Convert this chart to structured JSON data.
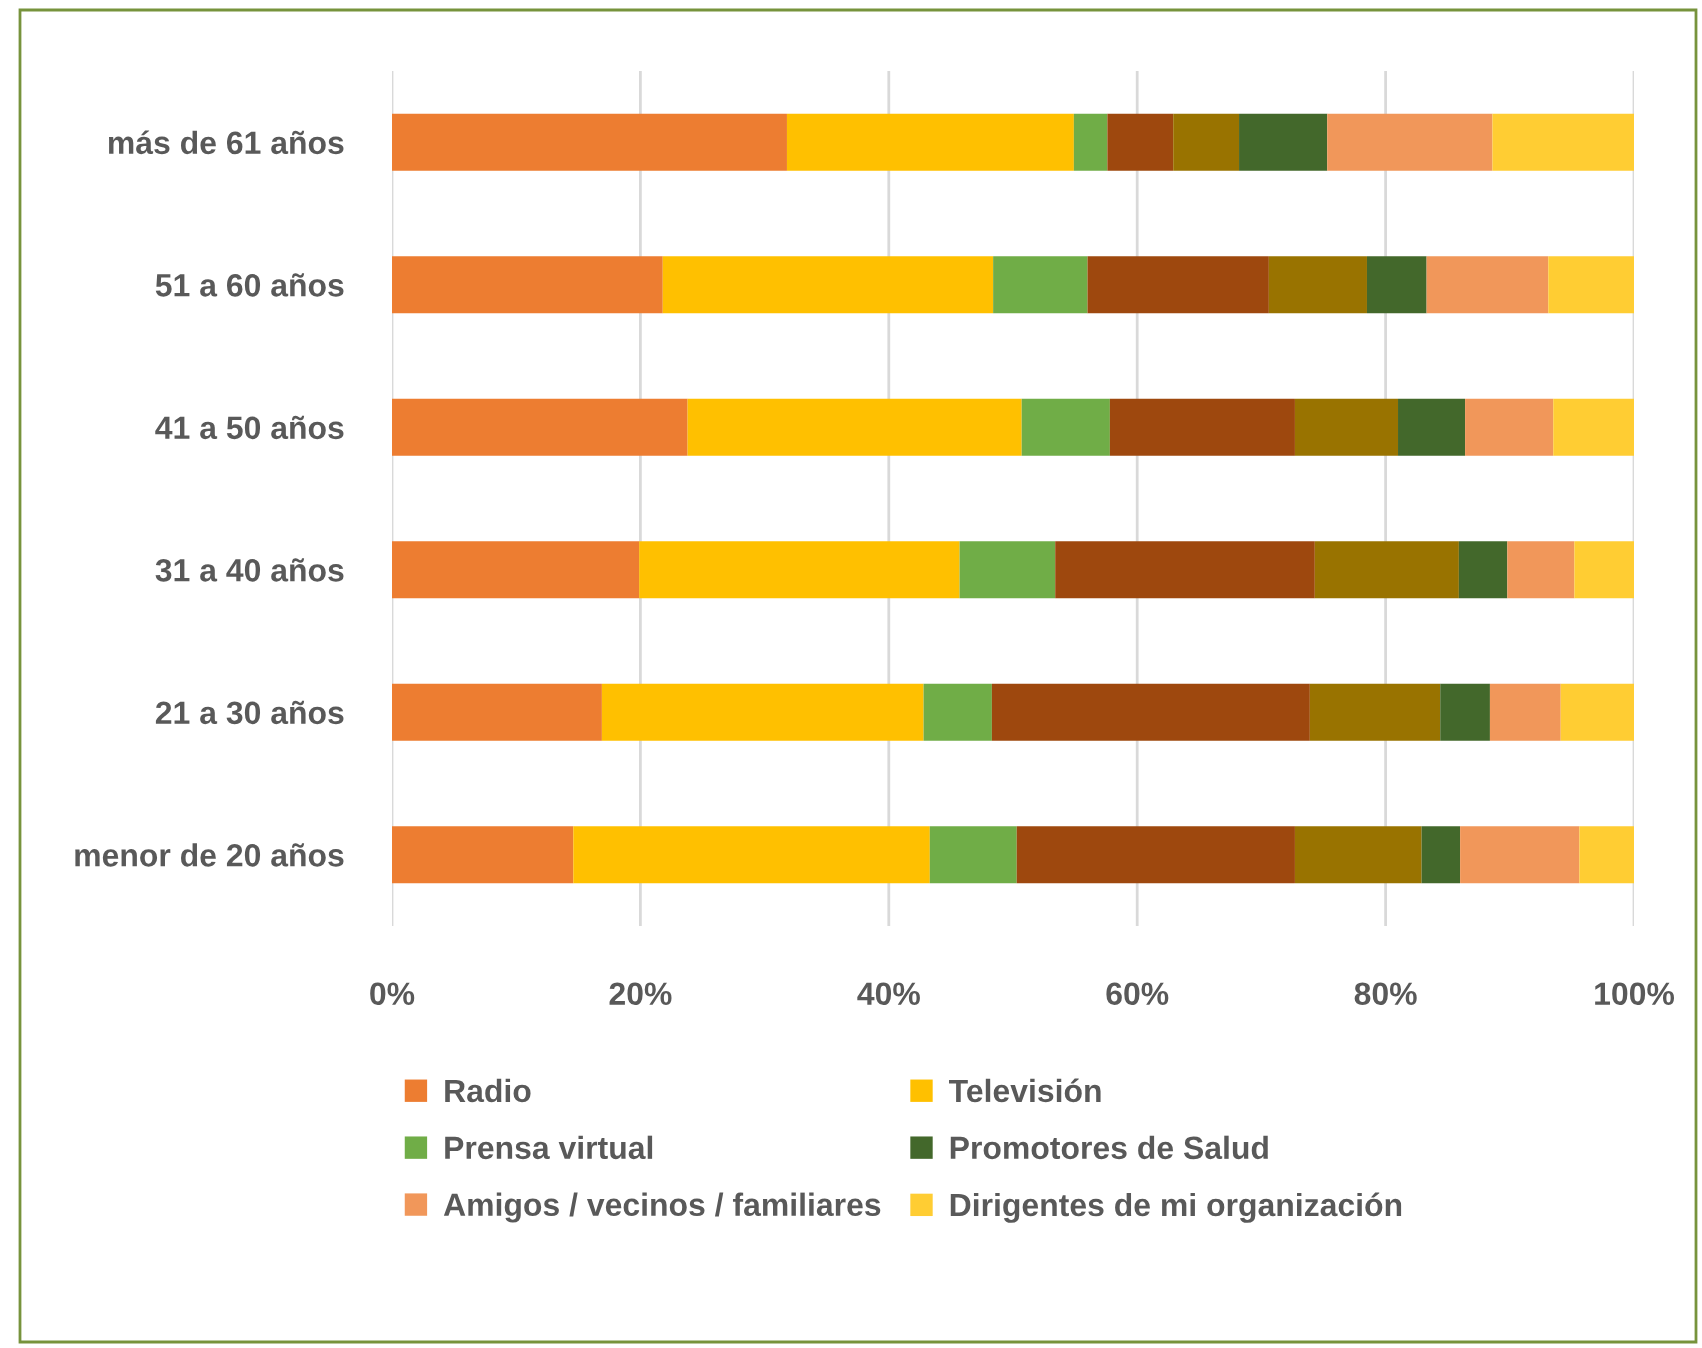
{
  "chart_data": {
    "type": "bar",
    "orientation": "horizontal",
    "stacked": true,
    "categories": [
      "más de 61 años",
      "51 a 60 años",
      "41 a 50 años",
      "31 a 40 años",
      "21 a 30 años",
      "menor de 20 años"
    ],
    "series": [
      {
        "name": "Radio",
        "color": "#ed7d31",
        "values": [
          31.8,
          21.8,
          23.8,
          19.9,
          16.9,
          14.6
        ]
      },
      {
        "name": "Televisión",
        "color": "#ffc000",
        "values": [
          23.1,
          26.6,
          26.9,
          25.8,
          25.9,
          28.7
        ]
      },
      {
        "name": "Prensa virtual",
        "color": "#70ad47",
        "values": [
          2.7,
          7.6,
          7.1,
          7.7,
          5.5,
          7.0
        ]
      },
      {
        "color": "#9e480e",
        "values": [
          5.3,
          14.6,
          14.9,
          20.9,
          25.6,
          22.4
        ]
      },
      {
        "color": "#997300",
        "values": [
          5.3,
          7.9,
          8.3,
          11.6,
          10.5,
          10.2
        ]
      },
      {
        "name": "Promotores de Salud",
        "color": "#43682b",
        "values": [
          7.1,
          4.8,
          5.4,
          3.9,
          4.0,
          3.1
        ]
      },
      {
        "name": "Amigos / vecinos / familiares",
        "color": "#f1975a",
        "values": [
          13.3,
          9.8,
          7.1,
          5.4,
          5.7,
          9.6
        ]
      },
      {
        "name": "Dirigentes de mi organización",
        "color": "#ffcd33",
        "values": [
          11.4,
          6.9,
          6.5,
          4.8,
          5.9,
          4.4
        ]
      }
    ],
    "xlim": [
      0,
      100
    ],
    "xticks": [
      {
        "value": 0,
        "label": "0%"
      },
      {
        "value": 20,
        "label": "20%"
      },
      {
        "value": 40,
        "label": "40%"
      },
      {
        "value": 60,
        "label": "60%"
      },
      {
        "value": 80,
        "label": "80%"
      },
      {
        "value": 100,
        "label": "100%"
      }
    ],
    "grid": "x",
    "legend": "bottom"
  }
}
